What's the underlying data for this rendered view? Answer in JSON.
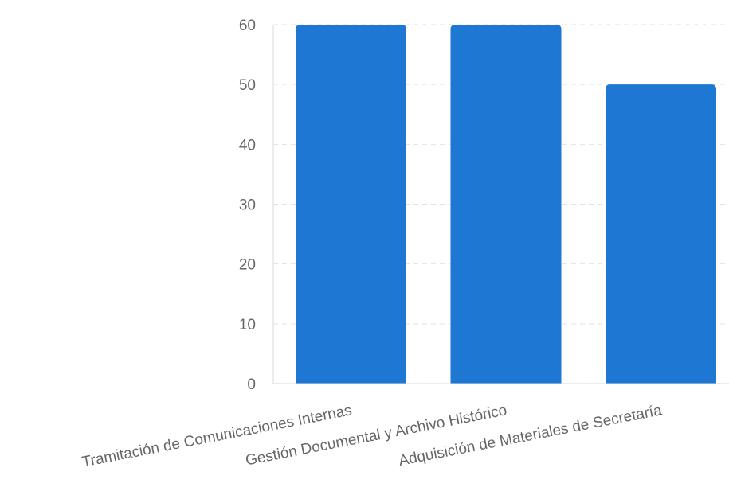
{
  "chart_data": {
    "type": "bar",
    "title": "",
    "xlabel": "",
    "ylabel": "",
    "categories": [
      "Tramitación de Comunicaciones Internas",
      "Gestión Documental y Archivo Histórico",
      "Adquisición de Materiales de Secretaría"
    ],
    "values": [
      60,
      60,
      50
    ],
    "ylim": [
      0,
      60
    ],
    "yticks": [
      "0",
      "10",
      "20",
      "30",
      "40",
      "50",
      "60"
    ],
    "grid": "horizontal-dashed",
    "legend": "none",
    "colors": {
      "bar": "#1f77d4",
      "grid": "#e2e2e2",
      "axis": "#d9d9d9",
      "tick_text": "#666666"
    }
  }
}
